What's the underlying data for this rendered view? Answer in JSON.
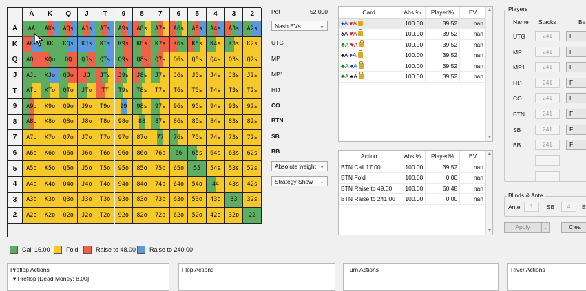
{
  "grid": {
    "columns": [
      "A",
      "K",
      "Q",
      "J",
      "T",
      "9",
      "8",
      "7",
      "6",
      "5",
      "4",
      "3",
      "2"
    ],
    "rows": [
      "A",
      "K",
      "Q",
      "J",
      "T",
      "9",
      "8",
      "7",
      "6",
      "5",
      "4",
      "3",
      "2"
    ],
    "cells": [
      [
        "AA",
        "AKs",
        "AQs",
        "AJs",
        "ATs",
        "A9s",
        "A8s",
        "A7s",
        "A6s",
        "A5s",
        "A4s",
        "A3s",
        "A2s"
      ],
      [
        "AKo",
        "KK",
        "KQs",
        "KJs",
        "KTs",
        "K9s",
        "K8s",
        "K7s",
        "K6s",
        "K5s",
        "K4s",
        "K3s",
        "K2s"
      ],
      [
        "AQo",
        "KQo",
        "QQ",
        "QJs",
        "QTs",
        "Q9s",
        "Q8s",
        "Q7s",
        "Q6s",
        "Q5s",
        "Q4s",
        "Q3s",
        "Q2s"
      ],
      [
        "AJo",
        "KJo",
        "QJo",
        "JJ",
        "JTs",
        "J9s",
        "J8s",
        "J7s",
        "J6s",
        "J5s",
        "J4s",
        "J3s",
        "J2s"
      ],
      [
        "ATo",
        "KTo",
        "QTo",
        "JTo",
        "TT",
        "T9s",
        "T8s",
        "T7s",
        "T6s",
        "T5s",
        "T4s",
        "T3s",
        "T2s"
      ],
      [
        "A9o",
        "K9o",
        "Q9o",
        "J9o",
        "T9o",
        "99",
        "98s",
        "97s",
        "96s",
        "95s",
        "94s",
        "93s",
        "92s"
      ],
      [
        "A8o",
        "K8o",
        "Q8o",
        "J8o",
        "T8o",
        "98o",
        "88",
        "87s",
        "86s",
        "85s",
        "84s",
        "83s",
        "82s"
      ],
      [
        "A7o",
        "K7o",
        "Q7o",
        "J7o",
        "T7o",
        "97o",
        "87o",
        "77",
        "76s",
        "75s",
        "74s",
        "73s",
        "72s"
      ],
      [
        "A6o",
        "K6o",
        "Q6o",
        "J6o",
        "T6o",
        "96o",
        "86o",
        "76o",
        "66",
        "65s",
        "64s",
        "63s",
        "62s"
      ],
      [
        "A5o",
        "K5o",
        "Q5o",
        "J5o",
        "T5o",
        "95o",
        "85o",
        "75o",
        "65o",
        "55",
        "54s",
        "53s",
        "52s"
      ],
      [
        "A4o",
        "K4o",
        "Q4o",
        "J4o",
        "T4o",
        "94o",
        "84o",
        "74o",
        "64o",
        "54o",
        "44",
        "43s",
        "42s"
      ],
      [
        "A3o",
        "K3o",
        "Q3o",
        "J3o",
        "T3o",
        "93o",
        "83o",
        "73o",
        "63o",
        "53o",
        "43o",
        "33",
        "32s"
      ],
      [
        "A2o",
        "K2o",
        "Q2o",
        "J2o",
        "T2o",
        "92o",
        "82o",
        "72o",
        "62o",
        "52o",
        "42o",
        "32o",
        "22"
      ]
    ],
    "strategy": [
      [
        "G",
        "GRB",
        "GRB",
        "GRB",
        "GRB",
        "GRB",
        "RGY",
        "GRY",
        "RGY",
        "GRB",
        "GRB",
        "RGB",
        "GB"
      ],
      [
        "RB",
        "G",
        "GB",
        "B",
        "GB",
        "GR",
        "GR",
        "GR",
        "RG",
        "RGY",
        "GY",
        "GY",
        "Y"
      ],
      [
        "GR",
        "RG",
        "GR",
        "GR",
        "GB",
        "GR",
        "GR",
        "GRY",
        "Y",
        "Y",
        "Y",
        "Y",
        "Y"
      ],
      [
        "G",
        "GB",
        "GR",
        "RG",
        "RGY",
        "RGY",
        "RGY",
        "GY",
        "Y",
        "Y",
        "Y",
        "Y",
        "Y"
      ],
      [
        "GY",
        "GY",
        "GY",
        "GY",
        "RY",
        "GY",
        "GY",
        "Y",
        "Y",
        "Y",
        "Y",
        "Y",
        "Y"
      ],
      [
        "GRY",
        "Y",
        "Y",
        "Y",
        "Y",
        "YBY",
        "GY",
        "GY",
        "Y",
        "Y",
        "Y",
        "Y",
        "Y"
      ],
      [
        "GRY",
        "Y",
        "Y",
        "Y",
        "Y",
        "Y",
        "YGY",
        "GY",
        "Y",
        "Y",
        "Y",
        "Y",
        "Y"
      ],
      [
        "Y",
        "Y",
        "Y",
        "Y",
        "Y",
        "Y",
        "Y",
        "YGY",
        "GY",
        "Y",
        "Y",
        "Y",
        "Y"
      ],
      [
        "Y",
        "Y",
        "Y",
        "Y",
        "Y",
        "Y",
        "Y",
        "Y",
        "G",
        "GY",
        "Y",
        "Y",
        "Y"
      ],
      [
        "Y",
        "Y",
        "Y",
        "Y",
        "Y",
        "Y",
        "Y",
        "Y",
        "Y",
        "G",
        "Y",
        "Y",
        "Y"
      ],
      [
        "Y",
        "Y",
        "Y",
        "Y",
        "Y",
        "Y",
        "Y",
        "Y",
        "Y",
        "Y",
        "GY",
        "Y",
        "Y"
      ],
      [
        "Y",
        "Y",
        "Y",
        "Y",
        "Y",
        "Y",
        "Y",
        "Y",
        "Y",
        "Y",
        "Y",
        "G",
        "Y"
      ],
      [
        "Y",
        "Y",
        "Y",
        "Y",
        "Y",
        "Y",
        "Y",
        "Y",
        "Y",
        "Y",
        "Y",
        "Y",
        "G"
      ]
    ]
  },
  "colors": {
    "call": "#5eae62",
    "fold": "#f7c82a",
    "raise_small": "#ef6248",
    "raise_big": "#5a9ad8"
  },
  "legend": [
    {
      "label": "Call 16.00",
      "color": "#5eae62"
    },
    {
      "label": "Fold",
      "color": "#f7c82a"
    },
    {
      "label": "Raise to 48.00",
      "color": "#ef6248"
    },
    {
      "label": "Raise to 240.00",
      "color": "#5a9ad8"
    }
  ],
  "middle": {
    "pot_label": "Pot",
    "pot_value": "52.000",
    "ev_mode": "Nash EVs",
    "positions": [
      "UTG",
      "MP",
      "MP1",
      "HIJ",
      "CO",
      "BTN",
      "SB",
      "BB"
    ],
    "weight_mode": "Absolute weight",
    "show_mode": "Strategy Show"
  },
  "cards_table": {
    "headers": [
      "Card",
      "Abs.%",
      "Played%",
      "EV"
    ],
    "rows": [
      {
        "c1": "A",
        "s1": "♦",
        "col1": "blue",
        "c2": "A",
        "s2": "♥",
        "col2": "red",
        "abs": "100.00",
        "played": "39.52",
        "ev": "nan"
      },
      {
        "c1": "A",
        "s1": "♠",
        "col1": "blk",
        "c2": "A",
        "s2": "♥",
        "col2": "red",
        "abs": "100.00",
        "played": "39.52",
        "ev": "nan"
      },
      {
        "c1": "A",
        "s1": "♣",
        "col1": "green",
        "c2": "A",
        "s2": "♥",
        "col2": "red",
        "abs": "100.00",
        "played": "39.52",
        "ev": "nan"
      },
      {
        "c1": "A",
        "s1": "♠",
        "col1": "blk",
        "c2": "A",
        "s2": "♦",
        "col2": "blue",
        "abs": "100.00",
        "played": "39.52",
        "ev": "nan"
      },
      {
        "c1": "A",
        "s1": "♣",
        "col1": "green",
        "c2": "A",
        "s2": "♦",
        "col2": "blue",
        "abs": "100.00",
        "played": "39.52",
        "ev": "nan"
      },
      {
        "c1": "A",
        "s1": "♣",
        "col1": "green",
        "c2": "A",
        "s2": "♠",
        "col2": "blk",
        "abs": "100.00",
        "played": "39.52",
        "ev": "nan"
      }
    ]
  },
  "actions_table": {
    "headers": [
      "Action",
      "Abs.%",
      "Played%",
      "EV"
    ],
    "rows": [
      {
        "action": "BTN Call 17.00",
        "abs": "100.00",
        "played": "39.52",
        "ev": "nan"
      },
      {
        "action": "BTN Fold",
        "abs": "100.00",
        "played": "0.00",
        "ev": "nan"
      },
      {
        "action": "BTN Raise to 49.00",
        "abs": "100.00",
        "played": "60.48",
        "ev": "nan"
      },
      {
        "action": "BTN Raise to 241.00",
        "abs": "100.00",
        "played": "0.00",
        "ev": "nan"
      }
    ]
  },
  "players": {
    "title": "Players",
    "col_name": "Name",
    "col_stacks": "Stacks",
    "col_bet": "Be",
    "rows": [
      {
        "name": "UTG",
        "stack": "241",
        "btn": "F"
      },
      {
        "name": "MP",
        "stack": "241",
        "btn": "F"
      },
      {
        "name": "MP1",
        "stack": "241",
        "btn": "F"
      },
      {
        "name": "HIJ",
        "stack": "241",
        "btn": "F"
      },
      {
        "name": "CO",
        "stack": "241",
        "btn": "F"
      },
      {
        "name": "BTN",
        "stack": "241",
        "btn": "F"
      },
      {
        "name": "SB",
        "stack": "241",
        "btn": "F"
      },
      {
        "name": "BB",
        "stack": "241",
        "btn": "F"
      }
    ]
  },
  "blinds": {
    "title": "Blinds & Ante",
    "ante_label": "Ante",
    "ante": "1",
    "sb_label": "SB",
    "sb": "4",
    "bb_label": "B"
  },
  "buttons": {
    "apply": "Apply",
    "clear": "Clea"
  },
  "panels": {
    "preflop_title": "Preflop Actions",
    "preflop_item": "Preflop [Dead Money: 8.00]",
    "flop_title": "Flop Actions",
    "turn_title": "Turn Actions",
    "river_title": "River Actions"
  }
}
